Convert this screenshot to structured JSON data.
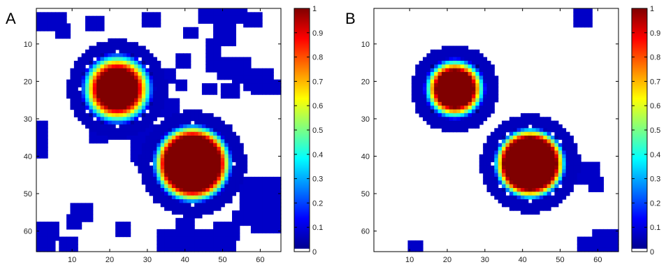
{
  "chart_data": [
    {
      "type": "heatmap",
      "panel_label": "A",
      "grid_size": [
        65,
        65
      ],
      "xlim": [
        0.5,
        65.5
      ],
      "ylim": [
        0.5,
        65.5
      ],
      "x_ticks": [
        10,
        20,
        30,
        40,
        50,
        60
      ],
      "y_ticks": [
        10,
        20,
        30,
        40,
        50,
        60
      ],
      "y_direction": "reversed",
      "colorbar": {
        "min": 0,
        "max": 1,
        "ticks": [
          0,
          0.1,
          0.2,
          0.3,
          0.4,
          0.5,
          0.6,
          0.7,
          0.8,
          0.9,
          1
        ]
      },
      "colormap": "jet",
      "blobs": [
        {
          "center": [
            22,
            22
          ],
          "core_radius": 5.5,
          "halo_radius": 10,
          "peak": 1.0
        },
        {
          "center": [
            42,
            42
          ],
          "core_radius": 7.5,
          "halo_radius": 11,
          "peak": 1.0
        }
      ],
      "low_regions": [
        [
          0.5,
          2,
          8,
          4
        ],
        [
          6,
          5,
          3,
          3
        ],
        [
          14,
          3,
          4,
          3
        ],
        [
          29,
          2,
          4,
          3
        ],
        [
          44,
          0.5,
          12,
          4
        ],
        [
          48,
          5,
          5,
          5
        ],
        [
          56,
          2,
          4,
          3
        ],
        [
          40,
          6,
          3,
          2
        ],
        [
          38,
          13,
          3,
          3
        ],
        [
          46,
          9,
          3,
          8
        ],
        [
          49,
          14,
          8,
          5
        ],
        [
          53,
          16,
          4,
          4
        ],
        [
          58,
          17,
          5,
          6
        ],
        [
          60,
          20,
          5,
          3
        ],
        [
          33,
          17,
          4,
          3
        ],
        [
          30,
          21,
          2,
          2
        ],
        [
          38,
          20,
          2,
          2
        ],
        [
          45,
          21,
          3,
          2
        ],
        [
          50,
          21,
          4,
          3
        ],
        [
          56,
          20,
          4,
          2
        ],
        [
          34,
          25,
          4,
          4
        ],
        [
          24,
          32,
          7,
          3
        ],
        [
          26,
          34,
          3,
          7
        ],
        [
          27,
          40,
          3,
          2
        ],
        [
          0.5,
          31,
          3,
          9
        ],
        [
          15,
          31,
          4,
          5
        ],
        [
          55,
          46,
          10.5,
          8
        ],
        [
          58,
          50,
          7.5,
          8
        ],
        [
          53,
          55,
          4,
          3
        ],
        [
          58,
          57,
          7.5,
          3
        ],
        [
          62,
          55,
          3.5,
          4
        ],
        [
          10,
          53,
          5,
          4
        ],
        [
          9,
          56,
          3,
          3
        ],
        [
          0.5,
          58,
          6,
          4
        ],
        [
          0.5,
          62,
          5,
          3.5
        ],
        [
          7,
          62,
          4,
          3.5
        ],
        [
          33,
          60,
          20,
          5.5
        ],
        [
          48,
          58,
          6,
          4
        ],
        [
          38,
          57,
          4,
          3
        ],
        [
          22,
          58,
          3,
          3
        ]
      ]
    },
    {
      "type": "heatmap",
      "panel_label": "B",
      "grid_size": [
        65,
        65
      ],
      "xlim": [
        0.5,
        65.5
      ],
      "ylim": [
        0.5,
        65.5
      ],
      "x_ticks": [
        10,
        20,
        30,
        40,
        50,
        60
      ],
      "y_ticks": [
        10,
        20,
        30,
        40,
        50,
        60
      ],
      "y_direction": "reversed",
      "colorbar": {
        "min": 0,
        "max": 1,
        "ticks": [
          0,
          0.1,
          0.2,
          0.3,
          0.4,
          0.5,
          0.6,
          0.7,
          0.8,
          0.9,
          1
        ]
      },
      "colormap": "jet",
      "blobs": [
        {
          "center": [
            22,
            22
          ],
          "core_radius": 5,
          "halo_radius": 8.5,
          "peak": 1.0
        },
        {
          "center": [
            42,
            42
          ],
          "core_radius": 7,
          "halo_radius": 10,
          "peak": 1.0
        }
      ],
      "low_regions": [
        [
          54,
          0.5,
          4,
          5
        ],
        [
          51,
          42,
          9,
          5
        ],
        [
          55,
          44,
          5,
          3
        ],
        [
          58,
          46,
          3,
          3
        ],
        [
          10,
          63,
          3,
          2.5
        ],
        [
          55,
          62,
          10.5,
          3.5
        ],
        [
          59,
          60,
          6.5,
          3
        ]
      ]
    }
  ]
}
